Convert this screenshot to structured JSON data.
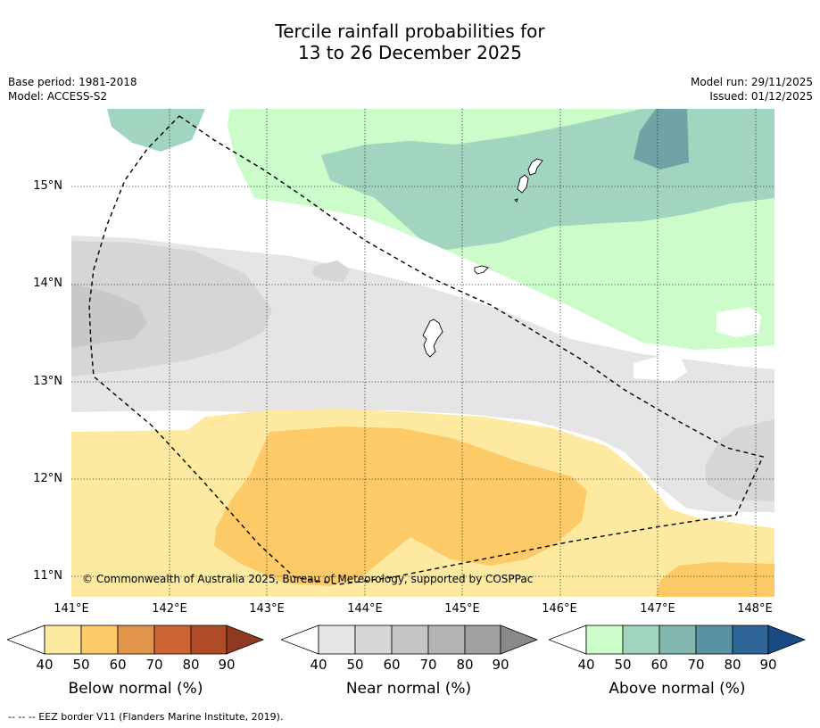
{
  "title": {
    "line1": "Tercile rainfall probabilities for",
    "line2": "13 to 26 December 2025"
  },
  "meta": {
    "base_period": "Base period: 1981-2018",
    "model": "Model: ACCESS-S2",
    "model_run": "Model run: 29/11/2025",
    "issued": "Issued: 01/12/2025"
  },
  "map": {
    "lat_labels": [
      "15°N",
      "14°N",
      "13°N",
      "12°N",
      "11°N"
    ],
    "lon_labels": [
      "141°E",
      "142°E",
      "143°E",
      "144°E",
      "145°E",
      "146°E",
      "147°E",
      "148°E"
    ],
    "copyright": "© Commonwealth of Australia 2025, Bureau of Meteorology, supported by COSPPac",
    "region_categories": [
      "Below normal 40–50%",
      "Below normal 50–60%",
      "Near normal 40–50%",
      "Near normal 50–60%",
      "Above normal 40–50%",
      "Above normal 50–60%",
      "Above normal 60–70%"
    ]
  },
  "colorbars": [
    {
      "label": "Below normal (%)",
      "ticks": [
        "40",
        "50",
        "60",
        "70",
        "80",
        "90"
      ],
      "colors": [
        "#fdeaa0",
        "#fdca68",
        "#e0954b",
        "#cd6434",
        "#b04b27",
        "#8e3920"
      ]
    },
    {
      "label": "Near normal (%)",
      "ticks": [
        "40",
        "50",
        "60",
        "70",
        "80",
        "90"
      ],
      "colors": [
        "#e5e5e5",
        "#d6d6d6",
        "#c5c5c5",
        "#b3b3b3",
        "#a1a1a1",
        "#8a8a8a"
      ]
    },
    {
      "label": "Above normal (%)",
      "ticks": [
        "40",
        "50",
        "60",
        "70",
        "80",
        "90"
      ],
      "colors": [
        "#ccfcca",
        "#a1d5bf",
        "#83b8b1",
        "#5993a3",
        "#2f6597",
        "#1a4a84"
      ]
    }
  ],
  "footer": {
    "legend": "-- -- -- EEZ border V11 (Flanders Marine Institute, 2019)."
  }
}
